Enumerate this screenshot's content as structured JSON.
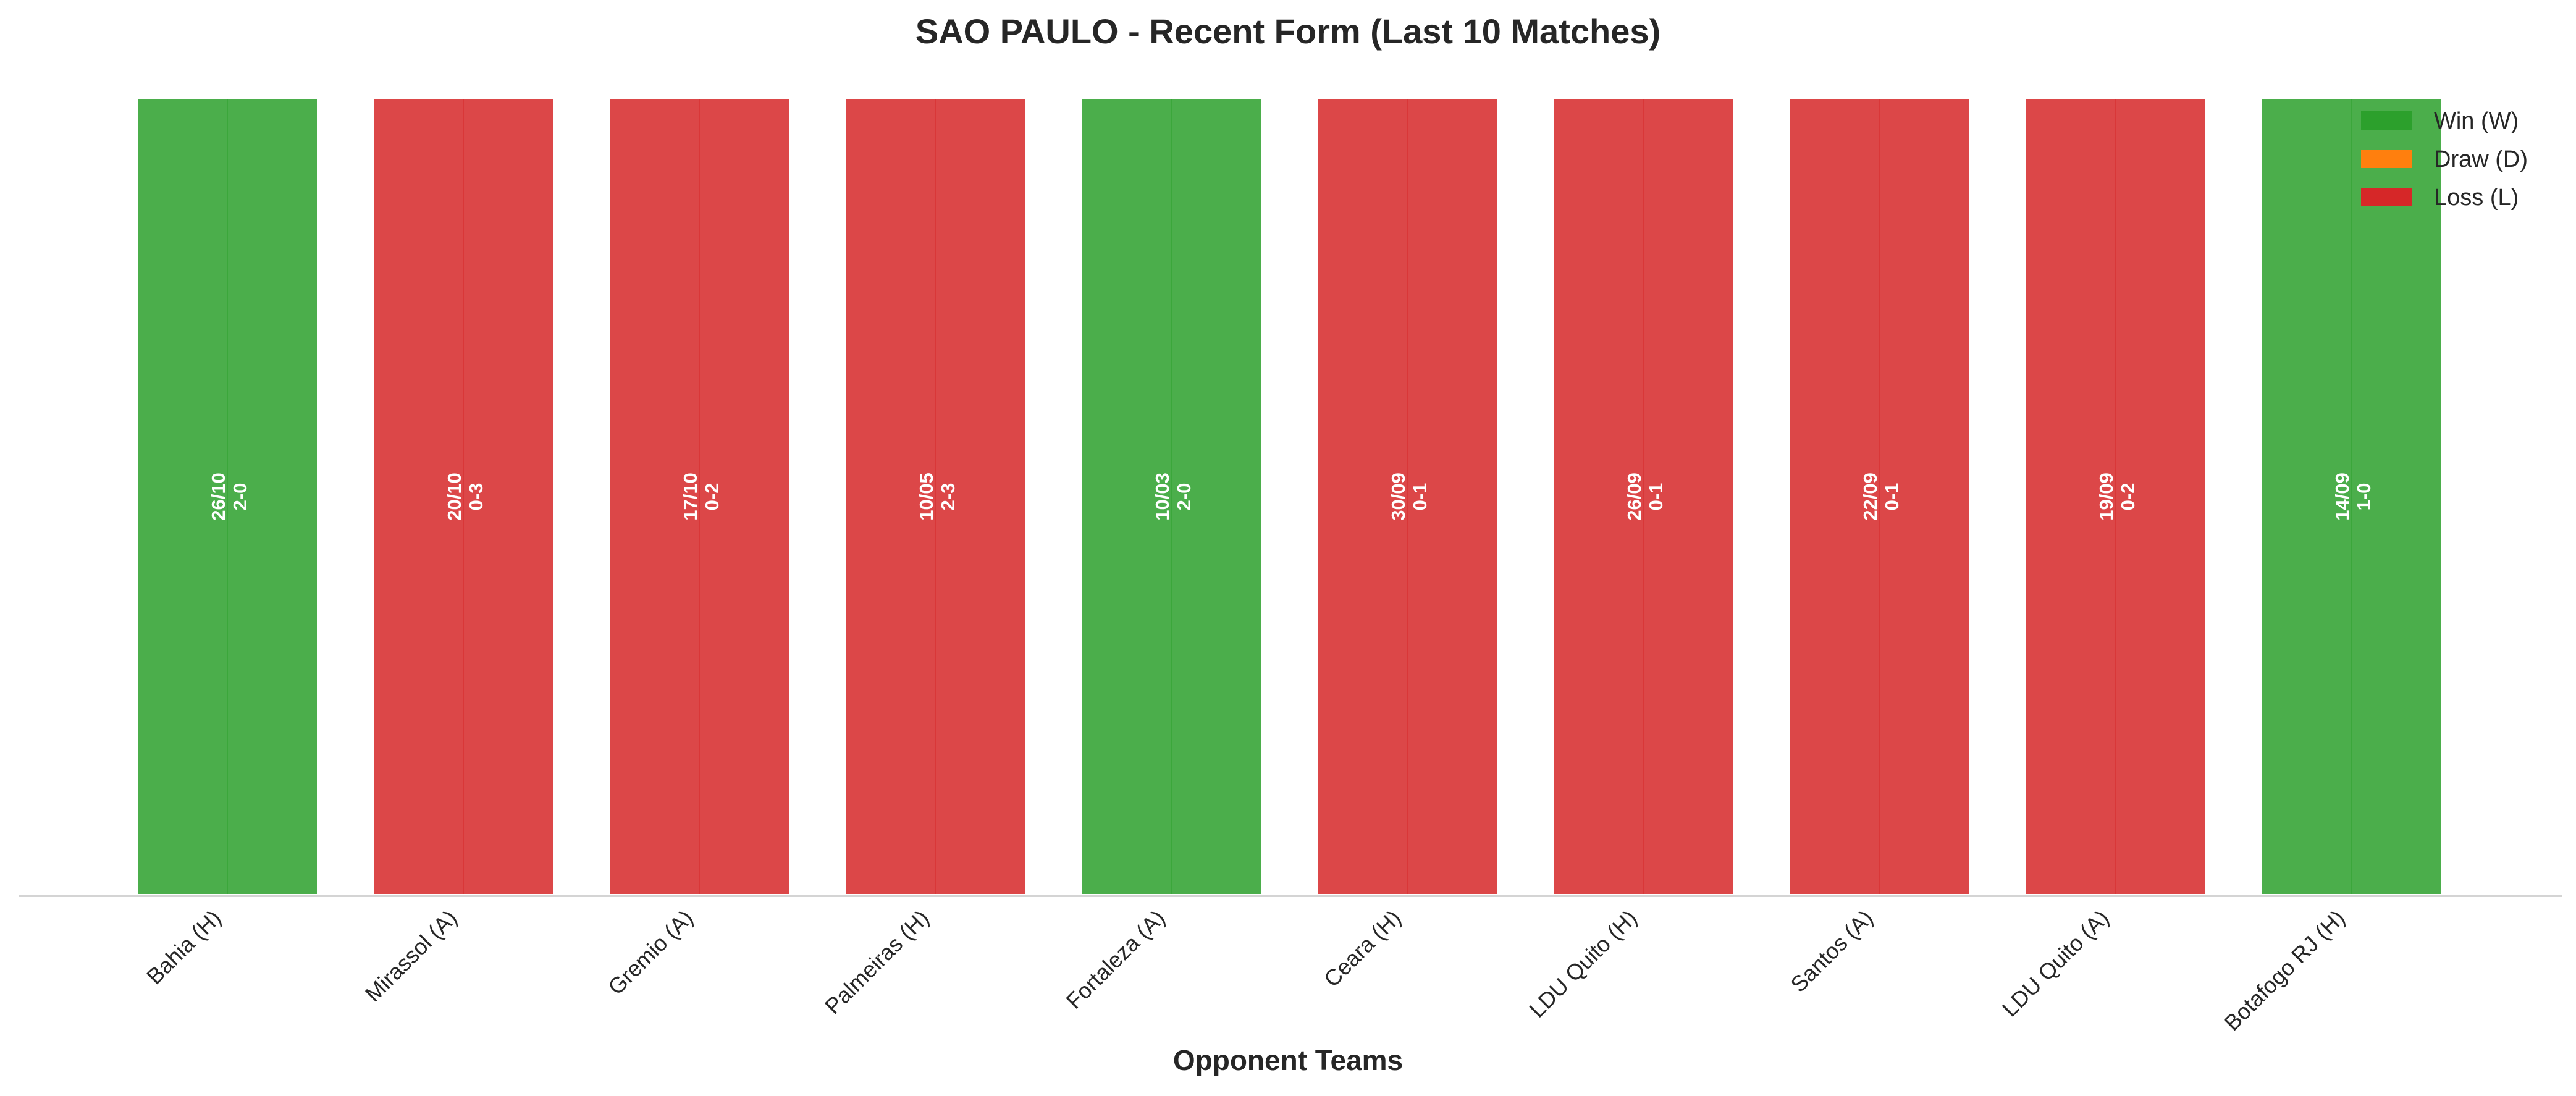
{
  "chart_data": {
    "type": "bar",
    "title": "SAO PAULO - Recent Form (Last 10 Matches)",
    "xlabel": "Opponent Teams",
    "ylabel": "",
    "categories": [
      "Bahia (H)",
      "Mirassol (A)",
      "Gremio (A)",
      "Palmeiras (H)",
      "Fortaleza (A)",
      "Ceara (H)",
      "LDU Quito (H)",
      "Santos (A)",
      "LDU Quito (A)",
      "Botafogo RJ (H)"
    ],
    "values": [
      1,
      1,
      1,
      1,
      1,
      1,
      1,
      1,
      1,
      1
    ],
    "results": [
      "W",
      "L",
      "L",
      "L",
      "W",
      "L",
      "L",
      "L",
      "L",
      "W"
    ],
    "bar_labels": [
      [
        "26/10",
        "2-0"
      ],
      [
        "20/10",
        "0-3"
      ],
      [
        "17/10",
        "0-2"
      ],
      [
        "10/05",
        "2-3"
      ],
      [
        "10/03",
        "2-0"
      ],
      [
        "30/09",
        "0-1"
      ],
      [
        "26/09",
        "0-1"
      ],
      [
        "22/09",
        "0-1"
      ],
      [
        "19/09",
        "0-2"
      ],
      [
        "14/09",
        "1-0"
      ]
    ],
    "legend": [
      {
        "key": "W",
        "label": "Win (W)",
        "color": "#2ca02c"
      },
      {
        "key": "D",
        "label": "Draw (D)",
        "color": "#ff7f0e"
      },
      {
        "key": "L",
        "label": "Loss (L)",
        "color": "#d62728"
      }
    ],
    "legend_position": "top-right",
    "ylim": [
      0,
      1
    ],
    "grid": false
  }
}
